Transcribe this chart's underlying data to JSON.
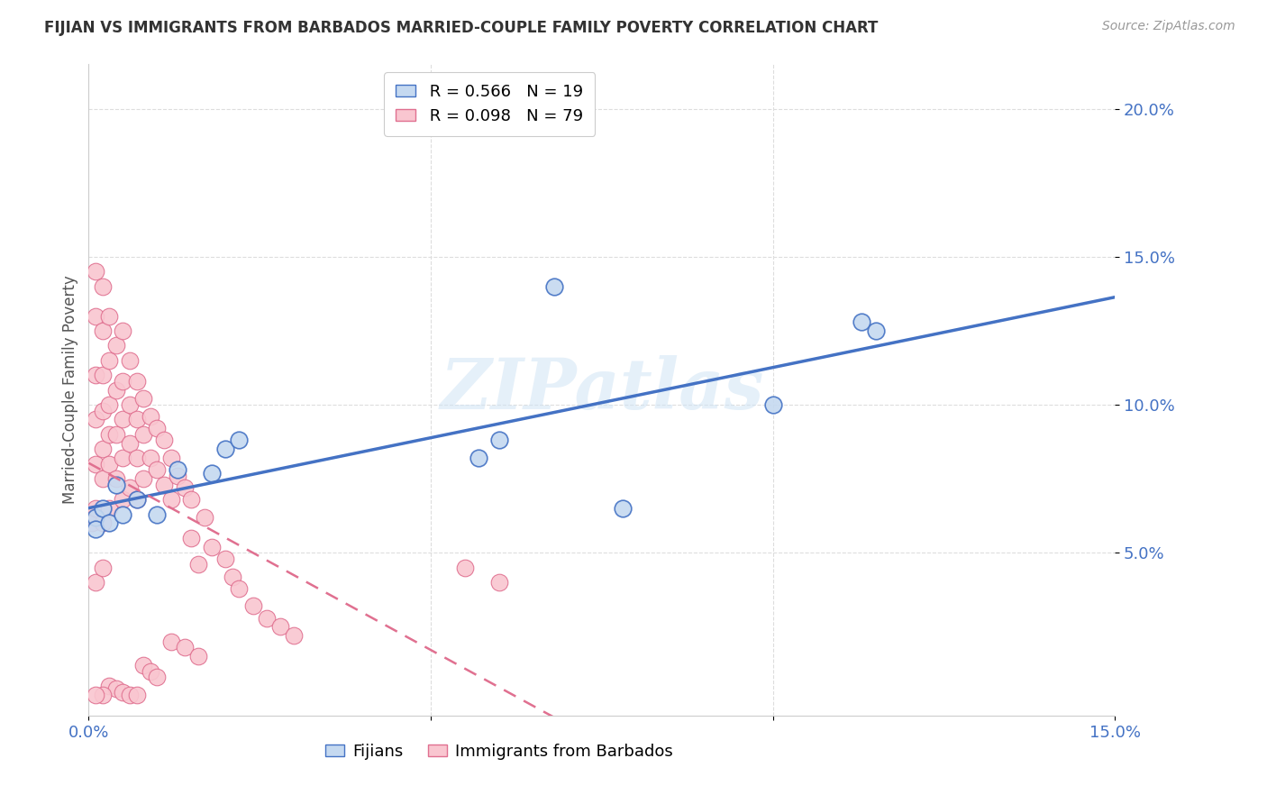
{
  "title": "FIJIAN VS IMMIGRANTS FROM BARBADOS MARRIED-COUPLE FAMILY POVERTY CORRELATION CHART",
  "source": "Source: ZipAtlas.com",
  "ylabel": "Married-Couple Family Poverty",
  "xlim": [
    0.0,
    0.15
  ],
  "ylim": [
    -0.005,
    0.215
  ],
  "xticks": [
    0.0,
    0.05,
    0.1,
    0.15
  ],
  "xticklabels": [
    "0.0%",
    "",
    "",
    "15.0%"
  ],
  "yticks": [
    0.05,
    0.1,
    0.15,
    0.2
  ],
  "yticklabels": [
    "5.0%",
    "10.0%",
    "15.0%",
    "20.0%"
  ],
  "fijians_color": "#c5d9f0",
  "fijians_edge_color": "#4472c4",
  "barbados_color": "#f9c6d0",
  "barbados_edge_color": "#e07090",
  "legend_fijians_R": "0.566",
  "legend_fijians_N": "19",
  "legend_barbados_R": "0.098",
  "legend_barbados_N": "79",
  "line_fijians_color": "#4472c4",
  "line_barbados_color": "#e07090",
  "watermark": "ZIPatlas",
  "fijians_x": [
    0.001,
    0.001,
    0.002,
    0.003,
    0.004,
    0.005,
    0.007,
    0.01,
    0.013,
    0.018,
    0.02,
    0.022,
    0.057,
    0.06,
    0.068,
    0.078,
    0.1,
    0.113,
    0.115
  ],
  "fijians_y": [
    0.062,
    0.058,
    0.065,
    0.06,
    0.073,
    0.063,
    0.068,
    0.063,
    0.078,
    0.077,
    0.085,
    0.088,
    0.082,
    0.088,
    0.14,
    0.065,
    0.1,
    0.128,
    0.125
  ],
  "barbados_x": [
    0.0005,
    0.001,
    0.001,
    0.001,
    0.001,
    0.001,
    0.001,
    0.001,
    0.002,
    0.002,
    0.002,
    0.002,
    0.002,
    0.002,
    0.002,
    0.002,
    0.003,
    0.003,
    0.003,
    0.003,
    0.003,
    0.003,
    0.004,
    0.004,
    0.004,
    0.004,
    0.005,
    0.005,
    0.005,
    0.005,
    0.005,
    0.006,
    0.006,
    0.006,
    0.006,
    0.007,
    0.007,
    0.007,
    0.007,
    0.008,
    0.008,
    0.008,
    0.009,
    0.009,
    0.01,
    0.01,
    0.011,
    0.011,
    0.012,
    0.012,
    0.013,
    0.014,
    0.015,
    0.015,
    0.016,
    0.017,
    0.018,
    0.02,
    0.021,
    0.022,
    0.024,
    0.026,
    0.028,
    0.03,
    0.055,
    0.06,
    0.012,
    0.014,
    0.016,
    0.008,
    0.009,
    0.01,
    0.003,
    0.004,
    0.005,
    0.006,
    0.007,
    0.002,
    0.001
  ],
  "barbados_y": [
    0.06,
    0.145,
    0.13,
    0.11,
    0.095,
    0.08,
    0.065,
    0.04,
    0.14,
    0.125,
    0.11,
    0.098,
    0.085,
    0.075,
    0.06,
    0.045,
    0.13,
    0.115,
    0.1,
    0.09,
    0.08,
    0.065,
    0.12,
    0.105,
    0.09,
    0.075,
    0.125,
    0.108,
    0.095,
    0.082,
    0.068,
    0.115,
    0.1,
    0.087,
    0.072,
    0.108,
    0.095,
    0.082,
    0.068,
    0.102,
    0.09,
    0.075,
    0.096,
    0.082,
    0.092,
    0.078,
    0.088,
    0.073,
    0.082,
    0.068,
    0.076,
    0.072,
    0.068,
    0.055,
    0.046,
    0.062,
    0.052,
    0.048,
    0.042,
    0.038,
    0.032,
    0.028,
    0.025,
    0.022,
    0.045,
    0.04,
    0.02,
    0.018,
    0.015,
    0.012,
    0.01,
    0.008,
    0.005,
    0.004,
    0.003,
    0.002,
    0.002,
    0.002,
    0.002
  ],
  "background_color": "#ffffff",
  "grid_color": "#dddddd"
}
